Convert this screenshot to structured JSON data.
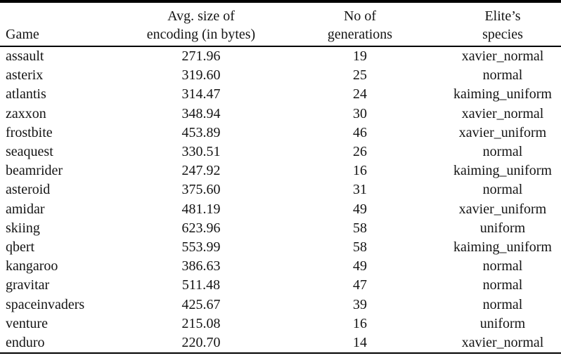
{
  "table": {
    "column_ids": [
      "game",
      "avg-encoding-size",
      "no-of-generations",
      "elites-species"
    ],
    "header": {
      "game": "Game",
      "avg_size_line1": "Avg. size of",
      "avg_size_line2": "encoding (in bytes)",
      "generations_line1": "No of",
      "generations_line2": "generations",
      "species_line1": "Elite’s",
      "species_line2": "species"
    },
    "rows": [
      [
        "assault",
        "271.96",
        "19",
        "xavier_normal"
      ],
      [
        "asterix",
        "319.60",
        "25",
        "normal"
      ],
      [
        "atlantis",
        "314.47",
        "24",
        "kaiming_uniform"
      ],
      [
        "zaxxon",
        "348.94",
        "30",
        "xavier_normal"
      ],
      [
        "frostbite",
        "453.89",
        "46",
        "xavier_uniform"
      ],
      [
        "seaquest",
        "330.51",
        "26",
        "normal"
      ],
      [
        "beamrider",
        "247.92",
        "16",
        "kaiming_uniform"
      ],
      [
        "asteroid",
        "375.60",
        "31",
        "normal"
      ],
      [
        "amidar",
        "481.19",
        "49",
        "xavier_uniform"
      ],
      [
        "skiing",
        "623.96",
        "58",
        "uniform"
      ],
      [
        "qbert",
        "553.99",
        "58",
        "kaiming_uniform"
      ],
      [
        "kangaroo",
        "386.63",
        "49",
        "normal"
      ],
      [
        "gravitar",
        "511.48",
        "47",
        "normal"
      ],
      [
        "spaceinvaders",
        "425.67",
        "39",
        "normal"
      ],
      [
        "venture",
        "215.08",
        "16",
        "uniform"
      ],
      [
        "enduro",
        "220.70",
        "14",
        "xavier_normal"
      ]
    ]
  },
  "colors": {
    "text": "#141414",
    "rule": "#000000",
    "background": "#ffffff"
  }
}
